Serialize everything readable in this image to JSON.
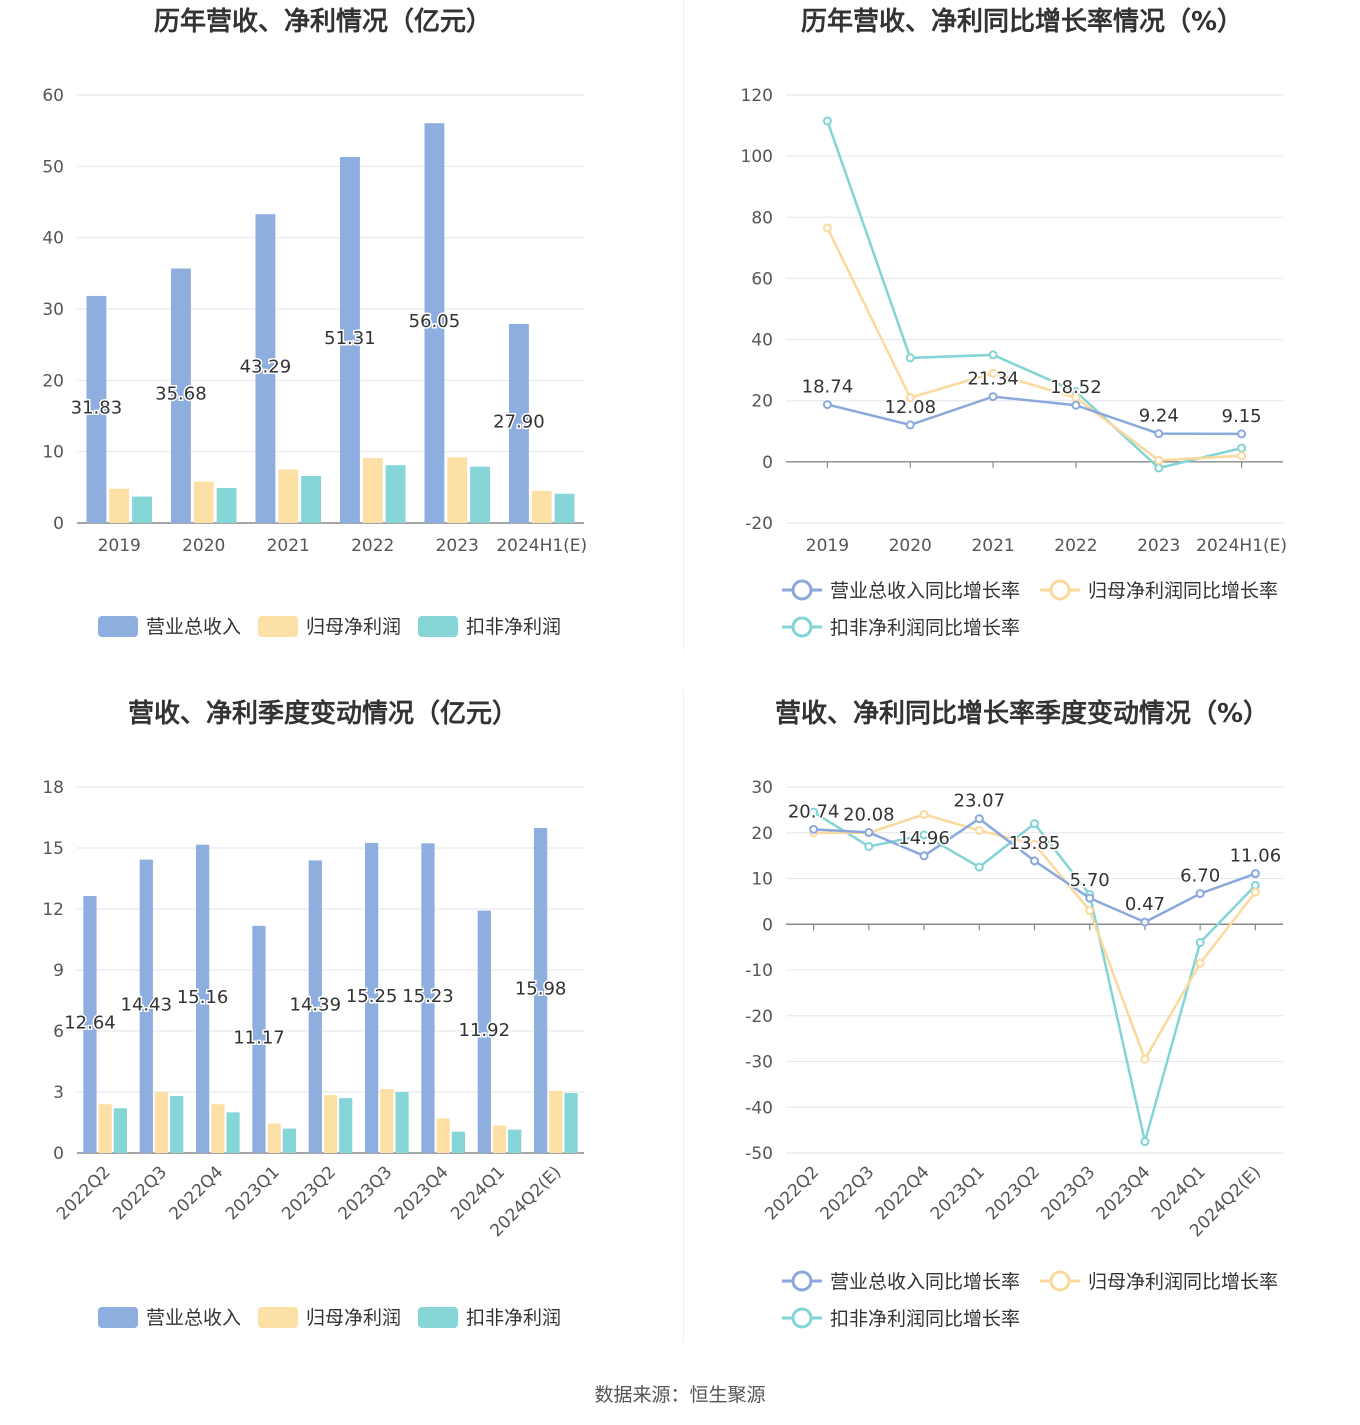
{
  "source": "数据来源：恒生聚源",
  "colors": {
    "revenue": "#8eaedf",
    "net_profit": "#fde0a6",
    "deducted_profit": "#86d6d8",
    "rev_rate": "#8ba8dc",
    "np_rate": "#fbd89b",
    "dp_rate": "#82d4d6"
  },
  "chart_data": [
    {
      "type": "bar",
      "title": "历年营收、净利情况（亿元）",
      "categories": [
        "2019",
        "2020",
        "2021",
        "2022",
        "2023",
        "2024H1(E)"
      ],
      "ylim": [
        0,
        60
      ],
      "yticks": [
        "0",
        "10",
        "20",
        "30",
        "40",
        "50",
        "60"
      ],
      "grid": true,
      "legend": "bottom",
      "series": [
        {
          "name": "营业总收入",
          "values": [
            31.83,
            35.68,
            43.29,
            51.31,
            56.05,
            27.9
          ],
          "labels": [
            "31.83",
            "35.68",
            "43.29",
            "51.31",
            "56.05",
            "27.90"
          ]
        },
        {
          "name": "归母净利润",
          "values": [
            4.8,
            5.8,
            7.5,
            9.1,
            9.2,
            4.5
          ]
        },
        {
          "name": "扣非净利润",
          "values": [
            3.7,
            4.9,
            6.6,
            8.1,
            7.9,
            4.1
          ]
        }
      ]
    },
    {
      "type": "line",
      "title": "历年营收、净利同比增长率情况（%）",
      "categories": [
        "2019",
        "2020",
        "2021",
        "2022",
        "2023",
        "2024H1(E)"
      ],
      "ylim": [
        -20,
        120
      ],
      "yticks": [
        "-20",
        "0",
        "20",
        "40",
        "60",
        "80",
        "100",
        "120"
      ],
      "grid": true,
      "legend": "bottom",
      "series": [
        {
          "name": "营业总收入同比增长率",
          "values": [
            18.74,
            12.08,
            21.34,
            18.52,
            9.24,
            9.15
          ],
          "labels": [
            "18.74",
            "12.08",
            "21.34",
            "18.52",
            "9.24",
            "9.15"
          ]
        },
        {
          "name": "归母净利润同比增长率",
          "values": [
            76.5,
            21.0,
            29.0,
            21.0,
            0.5,
            2.0
          ]
        },
        {
          "name": "扣非净利润同比增长率",
          "values": [
            111.5,
            34.0,
            35.0,
            23.0,
            -2.0,
            4.5
          ]
        }
      ]
    },
    {
      "type": "bar",
      "title": "营收、净利季度变动情况（亿元）",
      "categories": [
        "2022Q2",
        "2022Q3",
        "2022Q4",
        "2023Q1",
        "2023Q2",
        "2023Q3",
        "2023Q4",
        "2024Q1",
        "2024Q2(E)"
      ],
      "ylim": [
        0,
        18
      ],
      "yticks": [
        "0",
        "3",
        "6",
        "9",
        "12",
        "15",
        "18"
      ],
      "grid": true,
      "legend": "bottom",
      "series": [
        {
          "name": "营业总收入",
          "values": [
            12.64,
            14.43,
            15.16,
            11.17,
            14.39,
            15.25,
            15.23,
            11.92,
            15.98
          ],
          "labels": [
            "12.64",
            "14.43",
            "15.16",
            "11.17",
            "14.39",
            "15.25",
            "15.23",
            "11.92",
            "15.98"
          ]
        },
        {
          "name": "归母净利润",
          "values": [
            2.4,
            3.0,
            2.4,
            1.45,
            2.85,
            3.15,
            1.7,
            1.35,
            3.05
          ]
        },
        {
          "name": "扣非净利润",
          "values": [
            2.2,
            2.8,
            2.0,
            1.2,
            2.7,
            3.0,
            1.05,
            1.15,
            2.95
          ]
        }
      ]
    },
    {
      "type": "line",
      "title": "营收、净利同比增长率季度变动情况（%）",
      "categories": [
        "2022Q2",
        "2022Q3",
        "2022Q4",
        "2023Q1",
        "2023Q2",
        "2023Q3",
        "2023Q4",
        "2024Q1",
        "2024Q2(E)"
      ],
      "ylim": [
        -50,
        30
      ],
      "yticks": [
        "-50",
        "-40",
        "-30",
        "-20",
        "-10",
        "0",
        "10",
        "20",
        "30"
      ],
      "grid": true,
      "legend": "bottom",
      "series": [
        {
          "name": "营业总收入同比增长率",
          "values": [
            20.74,
            20.08,
            14.96,
            23.07,
            13.85,
            5.7,
            0.47,
            6.7,
            11.06
          ],
          "labels": [
            "20.74",
            "20.08",
            "14.96",
            "23.07",
            "13.85",
            "5.70",
            "0.47",
            "6.70",
            "11.06"
          ]
        },
        {
          "name": "归母净利润同比增长率",
          "values": [
            20.0,
            20.0,
            24.0,
            20.5,
            17.5,
            3.0,
            -29.5,
            -8.5,
            7.0
          ]
        },
        {
          "name": "扣非净利润同比增长率",
          "values": [
            24.5,
            17.0,
            19.5,
            12.5,
            22.0,
            6.5,
            -47.5,
            -4.0,
            8.5
          ]
        }
      ]
    }
  ]
}
